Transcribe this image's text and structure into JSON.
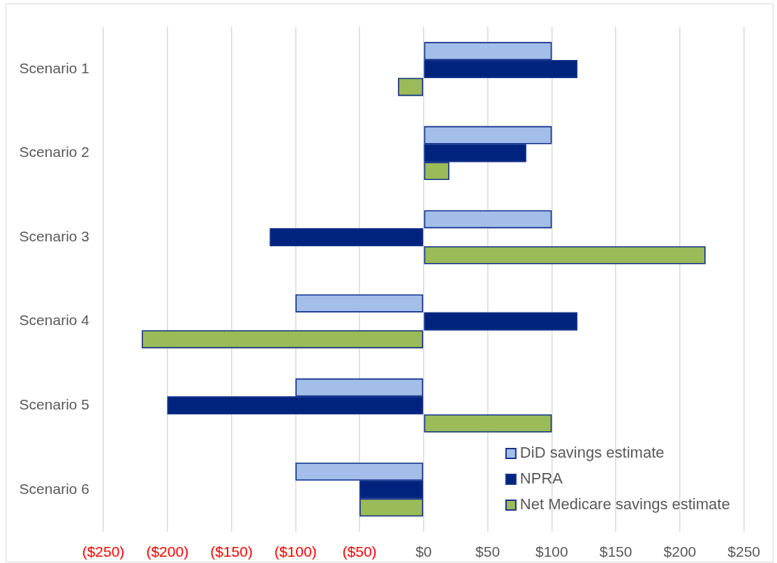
{
  "chart_data": {
    "type": "bar",
    "orientation": "horizontal",
    "categories": [
      "Scenario 1",
      "Scenario 2",
      "Scenario 3",
      "Scenario 4",
      "Scenario 5",
      "Scenario 6"
    ],
    "series": [
      {
        "name": "DiD savings estimate",
        "color": "#a3bfe9",
        "values": [
          100,
          100,
          100,
          -100,
          -100,
          -100
        ]
      },
      {
        "name": "NPRA",
        "color": "#00247d",
        "values": [
          120,
          80,
          -120,
          120,
          -200,
          -50
        ]
      },
      {
        "name": "Net Medicare savings estimate",
        "color": "#9bbb59",
        "values": [
          -20,
          20,
          220,
          -220,
          100,
          -50
        ]
      }
    ],
    "xlim": [
      -250,
      250
    ],
    "xticks": [
      {
        "value": -250,
        "label": "($250)"
      },
      {
        "value": -200,
        "label": "($200)"
      },
      {
        "value": -150,
        "label": "($150)"
      },
      {
        "value": -100,
        "label": "($100)"
      },
      {
        "value": -50,
        "label": "($50)"
      },
      {
        "value": 0,
        "label": "$0"
      },
      {
        "value": 50,
        "label": "$50"
      },
      {
        "value": 100,
        "label": "$100"
      },
      {
        "value": 150,
        "label": "$150"
      },
      {
        "value": 200,
        "label": "$200"
      },
      {
        "value": 250,
        "label": "$250"
      }
    ],
    "grid": "x",
    "legend": "bottom right"
  }
}
